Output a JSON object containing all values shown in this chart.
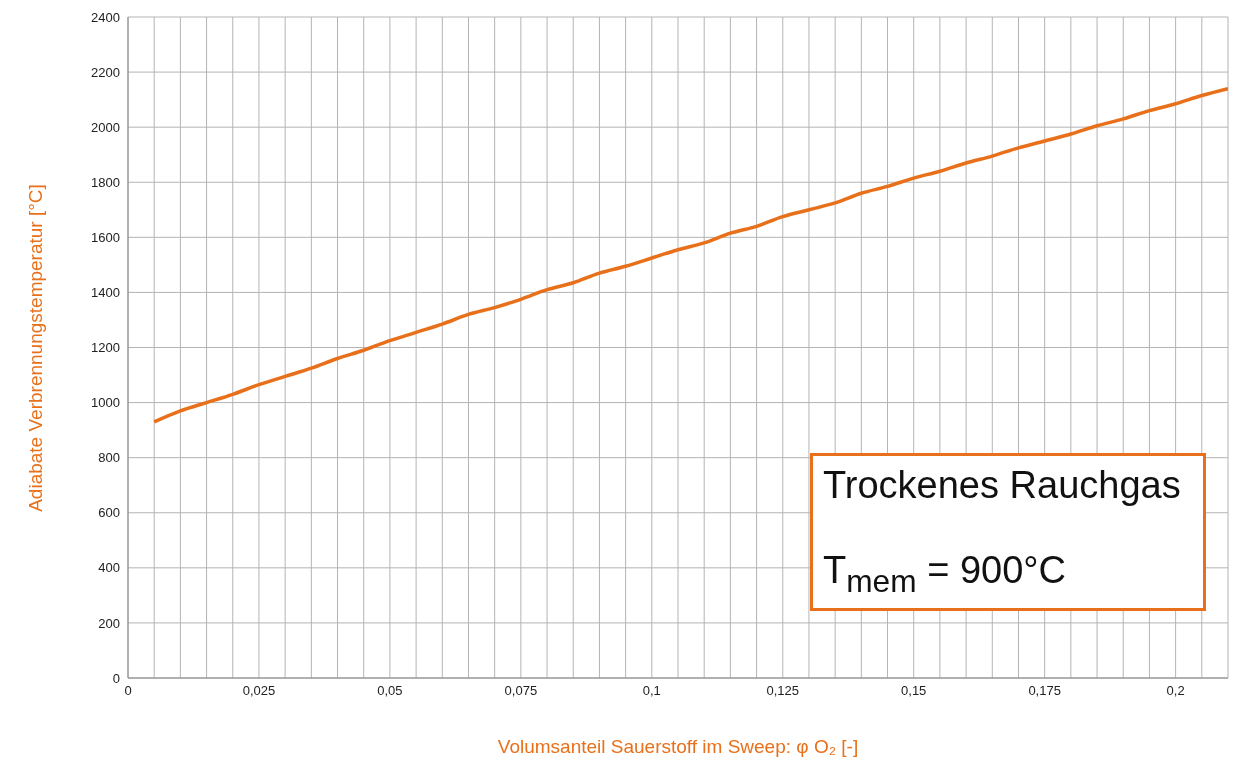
{
  "chart_data": {
    "type": "line",
    "xlabel": "Volumsanteil Sauerstoff im Sweep: φ O₂ [-]",
    "ylabel": "Adiabate Verbrennungstemperatur [°C]",
    "annotations": [
      "Trockenes Rauchgas",
      "T$_{mem}$ = 900°C"
    ],
    "x": [
      0.005,
      0.01,
      0.015,
      0.02,
      0.025,
      0.03,
      0.035,
      0.04,
      0.045,
      0.05,
      0.055,
      0.06,
      0.065,
      0.07,
      0.075,
      0.08,
      0.085,
      0.09,
      0.095,
      0.1,
      0.105,
      0.11,
      0.115,
      0.12,
      0.125,
      0.13,
      0.135,
      0.14,
      0.145,
      0.15,
      0.155,
      0.16,
      0.165,
      0.17,
      0.175,
      0.18,
      0.185,
      0.19,
      0.195,
      0.2,
      0.205,
      0.21
    ],
    "series": [
      {
        "color": "#e8701a",
        "values": [
          930,
          970,
          1000,
          1030,
          1065,
          1095,
          1125,
          1160,
          1190,
          1225,
          1255,
          1285,
          1320,
          1345,
          1375,
          1410,
          1435,
          1470,
          1495,
          1525,
          1555,
          1580,
          1615,
          1640,
          1675,
          1700,
          1725,
          1760,
          1785,
          1815,
          1840,
          1870,
          1895,
          1925,
          1950,
          1975,
          2005,
          2030,
          2060,
          2085,
          2115,
          2140
        ]
      }
    ],
    "xlim": [
      0,
      0.21
    ],
    "xticks": [
      0,
      {
        "value": 0.005,
        "label": null
      },
      {
        "value": 0.01,
        "label": null
      },
      {
        "value": 0.015,
        "label": null
      },
      {
        "value": 0.02,
        "label": null
      },
      {
        "value": 0.025,
        "label": "0,025"
      },
      {
        "value": 0.03,
        "label": null
      },
      {
        "value": 0.035,
        "label": null
      },
      {
        "value": 0.04,
        "label": null
      },
      {
        "value": 0.045,
        "label": null
      },
      {
        "value": 0.05,
        "label": "0,05"
      },
      {
        "value": 0.055,
        "label": null
      },
      {
        "value": 0.06,
        "label": null
      },
      {
        "value": 0.065,
        "label": null
      },
      {
        "value": 0.07,
        "label": null
      },
      {
        "value": 0.075,
        "label": "0,075"
      },
      {
        "value": 0.08,
        "label": null
      },
      {
        "value": 0.085,
        "label": null
      },
      {
        "value": 0.09,
        "label": null
      },
      {
        "value": 0.095,
        "label": null
      },
      {
        "value": 0.1,
        "label": "0,1"
      },
      {
        "value": 0.105,
        "label": null
      },
      {
        "value": 0.11,
        "label": null
      },
      {
        "value": 0.115,
        "label": null
      },
      {
        "value": 0.12,
        "label": null
      },
      {
        "value": 0.125,
        "label": "0,125"
      },
      {
        "value": 0.13,
        "label": null
      },
      {
        "value": 0.135,
        "label": null
      },
      {
        "value": 0.14,
        "label": null
      },
      {
        "value": 0.145,
        "label": null
      },
      {
        "value": 0.15,
        "label": "0,15"
      },
      {
        "value": 0.155,
        "label": null
      },
      {
        "value": 0.16,
        "label": null
      },
      {
        "value": 0.165,
        "label": null
      },
      {
        "value": 0.17,
        "label": null
      },
      {
        "value": 0.175,
        "label": "0,175"
      },
      {
        "value": 0.18,
        "label": null
      },
      {
        "value": 0.185,
        "label": null
      },
      {
        "value": 0.19,
        "label": null
      },
      {
        "value": 0.195,
        "label": null
      },
      {
        "value": 0.2,
        "label": "0,2"
      },
      {
        "value": 0.205,
        "label": null
      },
      {
        "value": 0.21,
        "label": null
      }
    ],
    "ylim": [
      0,
      2400
    ],
    "yticks": [
      0,
      200,
      400,
      600,
      800,
      1000,
      1200,
      1400,
      1600,
      1800,
      2000,
      2200,
      2400
    ],
    "grid": true,
    "legend": false,
    "marker": "none",
    "line_style": "solid"
  }
}
